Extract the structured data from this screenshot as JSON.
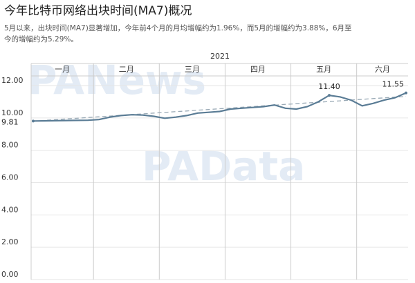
{
  "chart_data": {
    "type": "line",
    "title": "今年比特币网络出块时间(MA7)概况",
    "subtitle": [
      "5月以来，出块时间(MA7)显著增加，今年前4个月的月均增幅约为1.96%，而5月的增幅约为3.88%，6月至",
      "今的增幅约为5.29%。"
    ],
    "year": "2021",
    "months": [
      "一月",
      "二月",
      "三月",
      "四月",
      "五月",
      "六月"
    ],
    "watermarks": [
      "PANews",
      "PAData"
    ],
    "series": [
      {
        "color": "#5a7c95",
        "values": [
          9.81,
          9.82,
          9.83,
          9.84,
          9.85,
          9.86,
          9.9,
          10.05,
          10.15,
          10.2,
          10.18,
          10.1,
          9.98,
          10.05,
          10.15,
          10.3,
          10.35,
          10.4,
          10.55,
          10.6,
          10.65,
          10.7,
          10.8,
          10.6,
          10.55,
          10.7,
          11.0,
          11.4,
          11.3,
          11.1,
          10.75,
          10.9,
          11.1,
          11.25,
          11.55
        ],
        "value_labels": [
          "9.81",
          null,
          null,
          null,
          null,
          null,
          null,
          null,
          null,
          null,
          null,
          null,
          null,
          null,
          null,
          null,
          null,
          null,
          null,
          null,
          null,
          null,
          null,
          null,
          null,
          null,
          null,
          "11.40",
          null,
          null,
          null,
          null,
          null,
          null,
          "11.55"
        ]
      },
      {
        "color": "#9aaab6",
        "dash": true,
        "values": [
          9.8,
          9.85,
          9.89,
          9.94,
          9.98,
          10.03,
          10.07,
          10.12,
          10.16,
          10.21,
          10.25,
          10.3,
          10.34,
          10.39,
          10.43,
          10.48,
          10.52,
          10.57,
          10.61,
          10.66,
          10.7,
          10.75,
          10.79,
          10.84,
          10.88,
          10.93,
          10.97,
          11.02,
          11.06,
          11.11,
          11.15,
          11.2,
          11.24,
          11.29,
          11.33
        ]
      }
    ],
    "ylim": [
      0,
      12.6
    ],
    "yticks": [
      {
        "value": 0,
        "label": "0.00"
      },
      {
        "value": 2,
        "label": "2.00"
      },
      {
        "value": 4,
        "label": "4.00"
      },
      {
        "value": 6,
        "label": "6.00"
      },
      {
        "value": 8,
        "label": "8.00"
      },
      {
        "value": 10,
        "label": "10.00"
      },
      {
        "value": 12,
        "label": "12.00"
      }
    ],
    "grid": true
  }
}
